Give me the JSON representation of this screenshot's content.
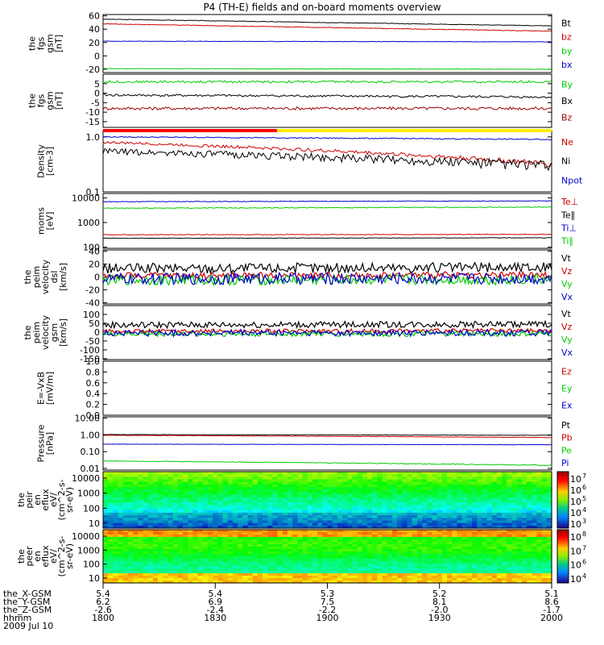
{
  "chart_data": {
    "type": "line",
    "title": "P4 (TH-E) fields and on-board moments overview",
    "x": [
      "1800",
      "1830",
      "1900",
      "1930",
      "2000"
    ],
    "hhmm_label": "hhmm",
    "date_label": "2009 Jul 10",
    "ephemeris": [
      {
        "name": "the_X-GSM",
        "values": [
          "5.4",
          "5.4",
          "5.3",
          "5.2",
          "5.1"
        ]
      },
      {
        "name": "the_Y-GSM",
        "values": [
          "6.2",
          "6.9",
          "7.5",
          "8.1",
          "8.6"
        ]
      },
      {
        "name": "the_Z-GSM",
        "values": [
          "-2.6",
          "-2.4",
          "-2.2",
          "-2.0",
          "-1.7"
        ]
      }
    ],
    "panels": [
      {
        "ylabel": [
          "the",
          "fgs",
          "gsm",
          "[nT]"
        ],
        "ylim": [
          -25,
          62
        ],
        "ticks": [
          "60",
          "40",
          "20",
          "0",
          "-20"
        ],
        "series": [
          {
            "name": "Bt",
            "color": "#000000",
            "start": 55,
            "end": 45,
            "noise": 0.4
          },
          {
            "name": "bz",
            "color": "#cc0000",
            "start": 48,
            "end": 37,
            "noise": 0.4
          },
          {
            "name": "by",
            "color": "#00cc00",
            "start": -19,
            "end": -20,
            "noise": 0.3
          },
          {
            "name": "bx",
            "color": "#0000cc",
            "start": 22,
            "end": 21,
            "noise": 0.3
          }
        ]
      },
      {
        "ylabel": [
          "the",
          "fgs",
          "gsm",
          "[nT]"
        ],
        "ylim": [
          -18,
          10
        ],
        "ticks": [
          "5",
          "0",
          "-5",
          "-10",
          "-15"
        ],
        "series": [
          {
            "name": "By",
            "color": "#00cc00",
            "start": 6,
            "end": 6,
            "noise": 0.6
          },
          {
            "name": "Bx",
            "color": "#000000",
            "start": -1,
            "end": -2,
            "noise": 0.6
          },
          {
            "name": "Bz",
            "color": "#990000",
            "start": -8,
            "end": -8,
            "noise": 0.8
          }
        ]
      },
      {
        "ylabel": [
          "Density",
          "[cm-3]"
        ],
        "ylim": [
          0.1,
          1.3
        ],
        "log": true,
        "ticks": [
          "1.0",
          "0.1"
        ],
        "series": [
          {
            "name": "Ne",
            "color": "#cc0000",
            "start": 0.8,
            "end": 0.32,
            "noise": 0.04
          },
          {
            "name": "Ni",
            "color": "#000000",
            "start": 0.55,
            "end": 0.3,
            "noise": 0.07
          },
          {
            "name": "Npot",
            "color": "#0000cc",
            "start": 1.0,
            "end": 0.9,
            "noise": 0.02
          }
        ]
      },
      {
        "ylabel": [
          "moms",
          "[eV]"
        ],
        "ylim": [
          90,
          15000
        ],
        "log": true,
        "ticks": [
          "10000",
          "1000",
          "100"
        ],
        "series": [
          {
            "name": "Te⊥",
            "color": "#cc0000",
            "start": 320,
            "end": 330,
            "noise": 8
          },
          {
            "name": "Te∥",
            "color": "#000000",
            "start": 230,
            "end": 240,
            "noise": 5
          },
          {
            "name": "Ti⊥",
            "color": "#0000cc",
            "start": 7000,
            "end": 7500,
            "noise": 200
          },
          {
            "name": "Ti∥",
            "color": "#00cc00",
            "start": 3800,
            "end": 4200,
            "noise": 150
          }
        ]
      },
      {
        "ylabel": [
          "the",
          "peim",
          "velocity",
          "dsl",
          "[km/s]"
        ],
        "ylim": [
          -42,
          42
        ],
        "ticks": [
          "40",
          "20",
          "0",
          "-20",
          "-40"
        ],
        "series": [
          {
            "name": "Vt",
            "color": "#000000",
            "start": 13,
            "end": 15,
            "noise": 8
          },
          {
            "name": "Vz",
            "color": "#cc0000",
            "start": 2,
            "end": 3,
            "noise": 5
          },
          {
            "name": "Vy",
            "color": "#00cc00",
            "start": -5,
            "end": -4,
            "noise": 8
          },
          {
            "name": "Vx",
            "color": "#0000cc",
            "start": -3,
            "end": -2,
            "noise": 9
          }
        ]
      },
      {
        "ylabel": [
          "the",
          "peim",
          "velocity",
          "gsm",
          "[km/s]"
        ],
        "ylim": [
          -155,
          150
        ],
        "ticks": [
          "100",
          "50",
          "0",
          "-50",
          "-100",
          "-150"
        ],
        "series": [
          {
            "name": "Vt",
            "color": "#000000",
            "start": 40,
            "end": 45,
            "noise": 18
          },
          {
            "name": "Vz",
            "color": "#cc0000",
            "start": 5,
            "end": 8,
            "noise": 12
          },
          {
            "name": "Vy",
            "color": "#00cc00",
            "start": -10,
            "end": -10,
            "noise": 15
          },
          {
            "name": "Vx",
            "color": "#0000cc",
            "start": -5,
            "end": -5,
            "noise": 18
          }
        ]
      },
      {
        "ylabel": [
          "E=-VxB",
          "[mV/m]"
        ],
        "ylim": [
          0,
          1
        ],
        "ticks": [
          "1.0",
          "0.8",
          "0.6",
          "0.4",
          "0.2",
          "0.0"
        ],
        "series": [
          {
            "name": "Ez",
            "color": "#cc0000"
          },
          {
            "name": "Ey",
            "color": "#00cc00"
          },
          {
            "name": "Ex",
            "color": "#0000cc"
          }
        ]
      },
      {
        "ylabel": [
          "Pressure",
          "[nPa]"
        ],
        "ylim": [
          0.008,
          12
        ],
        "log": true,
        "ticks": [
          "10.00",
          "1.00",
          "0.10",
          "0.01"
        ],
        "series": [
          {
            "name": "Pt",
            "color": "#000000",
            "start": 1.05,
            "end": 0.95,
            "noise": 0.02
          },
          {
            "name": "Pb",
            "color": "#cc0000",
            "start": 0.95,
            "end": 0.7,
            "noise": 0.02
          },
          {
            "name": "Pe",
            "color": "#00cc00",
            "start": 0.028,
            "end": 0.015,
            "noise": 0.001
          },
          {
            "name": "Pi",
            "color": "#0000cc",
            "start": 0.28,
            "end": 0.26,
            "noise": 0.005
          }
        ]
      }
    ],
    "spectrograms": [
      {
        "ylabel": [
          "the",
          "peir",
          "en",
          "eflux",
          "eV/",
          "(cm^2-s-",
          "sr-eV)"
        ],
        "ticks": [
          "10000",
          "1000",
          "100",
          "10"
        ],
        "colorbar": [
          "10",
          "10",
          "10",
          "10",
          "10"
        ],
        "colorbar_exp": [
          "7",
          "6",
          "5",
          "4",
          "3"
        ]
      },
      {
        "ylabel": [
          "the",
          "peer",
          "en",
          "eflux",
          "eV/",
          "(cm^2-s-",
          "sr-eV)"
        ],
        "ticks": [
          "10000",
          "1000",
          "100",
          "10"
        ],
        "colorbar": [
          "10",
          "10",
          "10",
          "10"
        ],
        "colorbar_exp": [
          "8",
          "7",
          "6",
          "4"
        ]
      }
    ]
  }
}
